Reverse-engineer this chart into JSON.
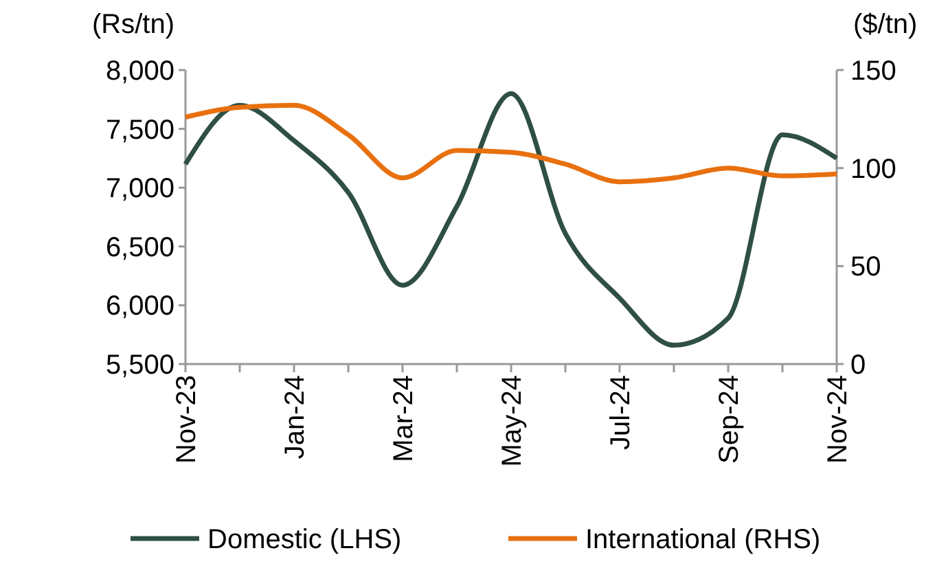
{
  "chart_data": {
    "type": "line",
    "ylabel": "(Rs/tn)",
    "y2label": "($/tn)",
    "categories": [
      "Nov-23",
      null,
      "Jan-24",
      null,
      "Mar-24",
      null,
      "May-24",
      null,
      "Jul-24",
      null,
      "Sep-24",
      null,
      "Nov-24"
    ],
    "series": [
      {
        "name": "Domestic (LHS)",
        "color": "#2f4f44",
        "values": [
          7200,
          7700,
          7400,
          6960,
          6170,
          6840,
          7800,
          6610,
          6060,
          5660,
          5890,
          7450,
          7250
        ]
      },
      {
        "name": "International (RHS)",
        "color": "#e8700f",
        "axis": "y2",
        "values": [
          126,
          131,
          132,
          117,
          95,
          109,
          108,
          102,
          93,
          95,
          100,
          96,
          97
        ]
      }
    ],
    "ylim": [
      5500,
      8000
    ],
    "yticks": [
      {
        "value": 5500,
        "label": "5,500"
      },
      {
        "value": 6000,
        "label": "6,000"
      },
      {
        "value": 6500,
        "label": "6,500"
      },
      {
        "value": 7000,
        "label": "7,000"
      },
      {
        "value": 7500,
        "label": "7,500"
      },
      {
        "value": 8000,
        "label": "8,000"
      }
    ],
    "y2lim": [
      0,
      150
    ],
    "y2ticks": [
      0,
      50,
      100,
      150
    ],
    "legend": "bottom",
    "grid": false,
    "marker": "none",
    "line_style": "solid"
  }
}
